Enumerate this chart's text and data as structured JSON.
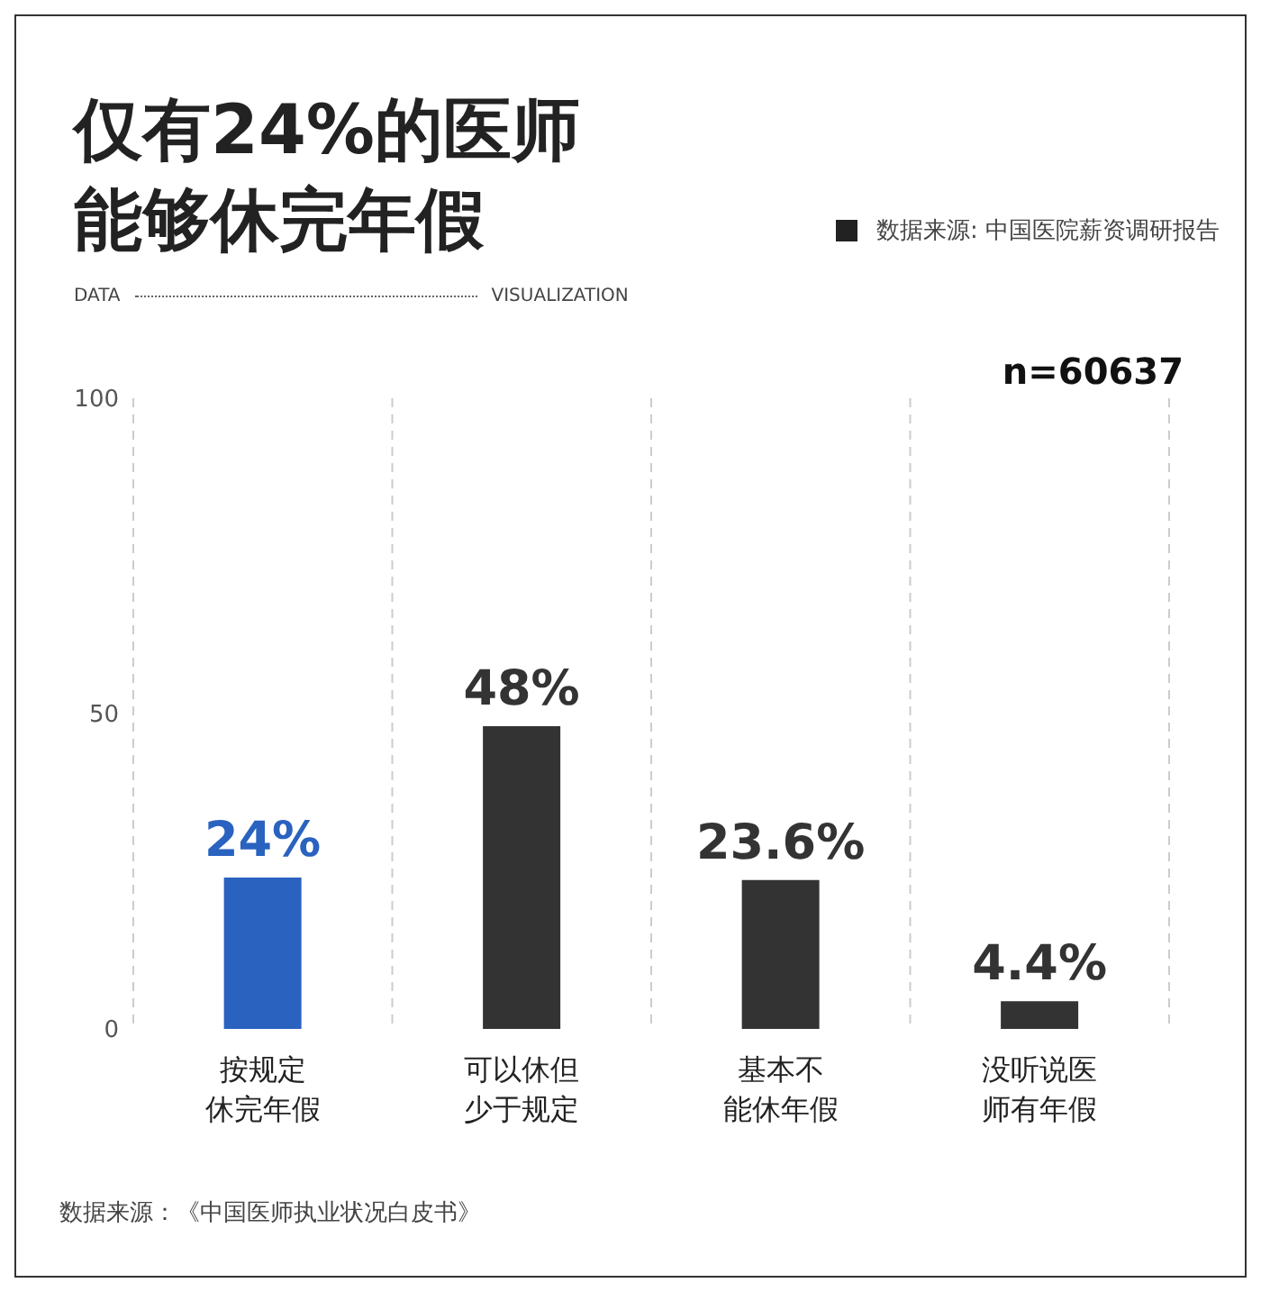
{
  "chart_data": {
    "type": "bar",
    "title": "仅有24%的医师能够休完年假",
    "categories": [
      "按规定休完年假",
      "可以休但少于规定",
      "基本不能休年假",
      "没听说医师有年假"
    ],
    "values": [
      24,
      48,
      23.6,
      4.4
    ],
    "colors": [
      "#2a62c0",
      "#333333",
      "#333333",
      "#333333"
    ],
    "value_labels": [
      "24%",
      "48%",
      "23.6%",
      "4.4%"
    ],
    "ylim": [
      0,
      100
    ],
    "yticks": [
      0,
      50,
      100
    ],
    "grid": "x",
    "annotations": [
      "数据来源: 中国医院薪资调研报告",
      "DATA",
      "VISUALIZATION",
      "n=60637",
      "数据来源：《中国医师执业状况白皮书》"
    ]
  }
}
